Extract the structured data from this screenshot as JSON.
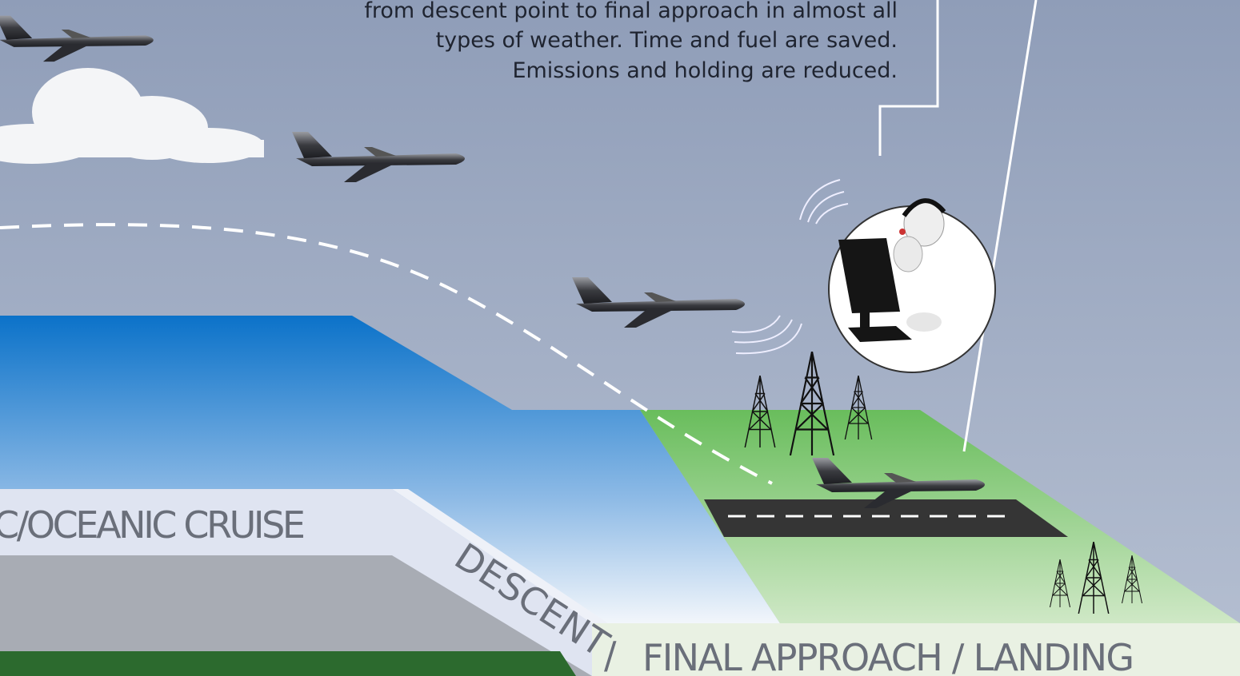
{
  "callout": {
    "lines": [
      "from descent point to final approach in almost all",
      "types of weather. Time and fuel are saved.",
      "Emissions and holding are reduced."
    ]
  },
  "phases": {
    "cruise": "C/OCEANIC CRUISE",
    "descent": "DESCENT",
    "separator": "/",
    "landing": "FINAL APPROACH / LANDING"
  }
}
